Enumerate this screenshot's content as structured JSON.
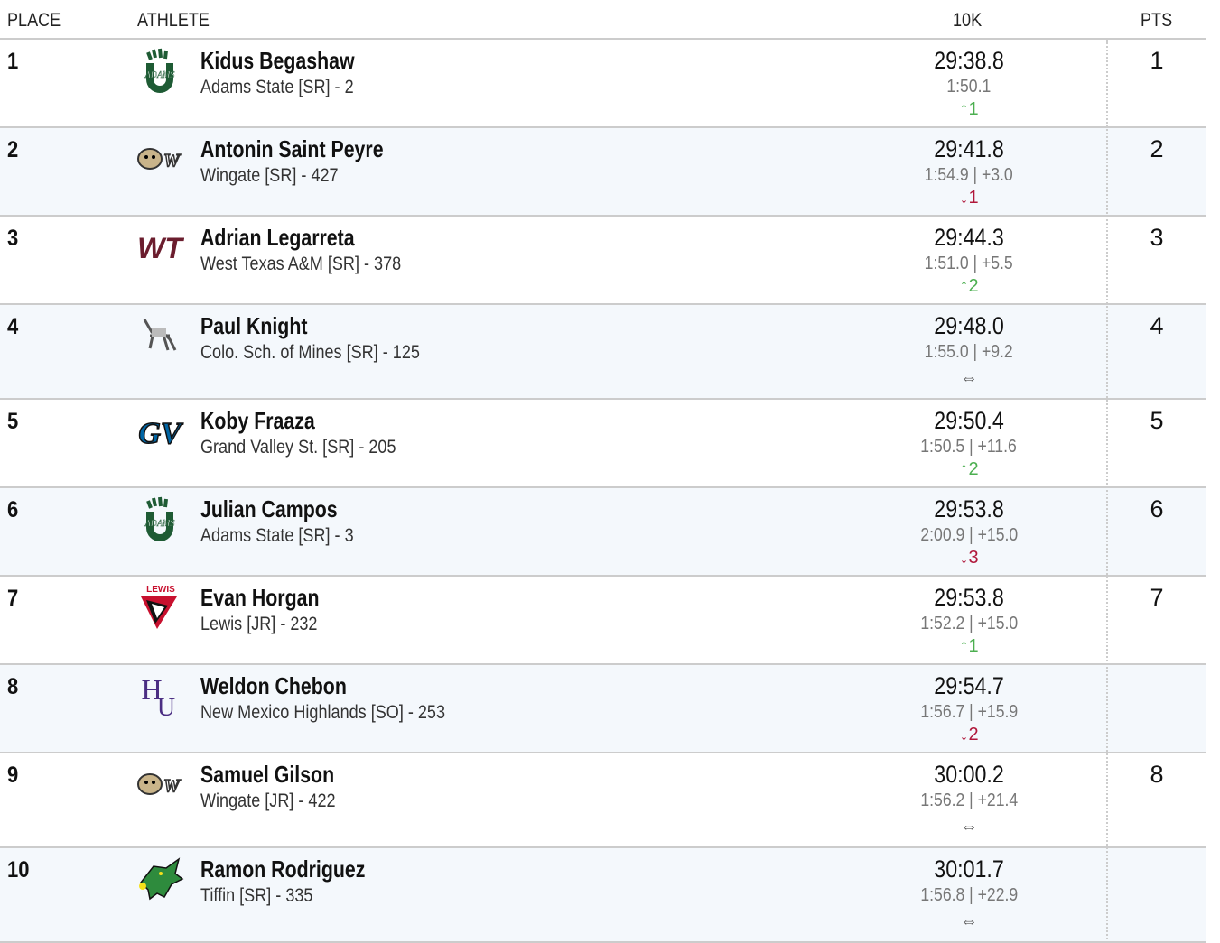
{
  "header": {
    "place": "PLACE",
    "athlete": "ATHLETE",
    "event": "10K",
    "pts": "PTS"
  },
  "colors": {
    "up": "#4caf50",
    "down": "#b0173a",
    "row_alt": "#f4f8fc"
  },
  "rows": [
    {
      "place": "1",
      "name": "Kidus Begashaw",
      "team": "Adams State [SR] - 2",
      "time": "29:38.8",
      "split": "1:50.1",
      "move": "↑1",
      "dir": "up",
      "pts": "1",
      "logo": "adams-state-logo"
    },
    {
      "place": "2",
      "name": "Antonin Saint Peyre",
      "team": "Wingate [SR] - 427",
      "time": "29:41.8",
      "split": "1:54.9 | +3.0",
      "move": "↓1",
      "dir": "down",
      "pts": "2",
      "logo": "wingate-logo"
    },
    {
      "place": "3",
      "name": "Adrian Legarreta",
      "team": "West Texas A&M [SR] - 378",
      "time": "29:44.3",
      "split": "1:51.0 | +5.5",
      "move": "↑2",
      "dir": "up",
      "pts": "3",
      "logo": "west-texas-logo"
    },
    {
      "place": "4",
      "name": "Paul Knight",
      "team": "Colo. Sch. of Mines [SR] - 125",
      "time": "29:48.0",
      "split": "1:55.0 | +9.2",
      "move": "⇔",
      "dir": "same",
      "pts": "4",
      "logo": "mines-logo"
    },
    {
      "place": "5",
      "name": "Koby Fraaza",
      "team": "Grand Valley St. [SR] - 205",
      "time": "29:50.4",
      "split": "1:50.5 | +11.6",
      "move": "↑2",
      "dir": "up",
      "pts": "5",
      "logo": "grand-valley-logo"
    },
    {
      "place": "6",
      "name": "Julian Campos",
      "team": "Adams State [SR] - 3",
      "time": "29:53.8",
      "split": "2:00.9 | +15.0",
      "move": "↓3",
      "dir": "down",
      "pts": "6",
      "logo": "adams-state-logo"
    },
    {
      "place": "7",
      "name": "Evan Horgan",
      "team": "Lewis [JR] - 232",
      "time": "29:53.8",
      "split": "1:52.2 | +15.0",
      "move": "↑1",
      "dir": "up",
      "pts": "7",
      "logo": "lewis-logo"
    },
    {
      "place": "8",
      "name": "Weldon Chebon",
      "team": "New Mexico Highlands [SO] - 253",
      "time": "29:54.7",
      "split": "1:56.7 | +15.9",
      "move": "↓2",
      "dir": "down",
      "pts": "",
      "logo": "highlands-logo"
    },
    {
      "place": "9",
      "name": "Samuel Gilson",
      "team": "Wingate [JR] - 422",
      "time": "30:00.2",
      "split": "1:56.2 | +21.4",
      "move": "⇔",
      "dir": "same",
      "pts": "8",
      "logo": "wingate-logo"
    },
    {
      "place": "10",
      "name": "Ramon Rodriguez",
      "team": "Tiffin [SR] - 335",
      "time": "30:01.7",
      "split": "1:56.8 | +22.9",
      "move": "⇔",
      "dir": "same",
      "pts": "",
      "logo": "tiffin-logo"
    }
  ]
}
